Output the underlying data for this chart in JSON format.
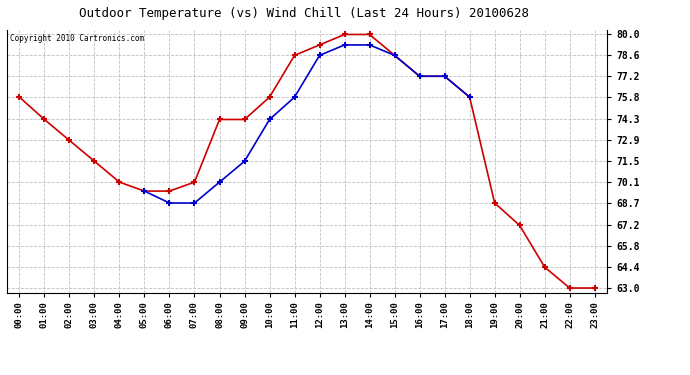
{
  "title": "Outdoor Temperature (vs) Wind Chill (Last 24 Hours) 20100628",
  "copyright": "Copyright 2010 Cartronics.com",
  "hours": [
    0,
    1,
    2,
    3,
    4,
    5,
    6,
    7,
    8,
    9,
    10,
    11,
    12,
    13,
    14,
    15,
    16,
    17,
    18,
    19,
    20,
    21,
    22,
    23
  ],
  "hour_labels": [
    "00:00",
    "01:00",
    "02:00",
    "03:00",
    "04:00",
    "05:00",
    "06:00",
    "07:00",
    "08:00",
    "09:00",
    "10:00",
    "11:00",
    "12:00",
    "13:00",
    "14:00",
    "15:00",
    "16:00",
    "17:00",
    "18:00",
    "19:00",
    "20:00",
    "21:00",
    "22:00",
    "23:00"
  ],
  "temp": [
    75.8,
    74.3,
    72.9,
    71.5,
    70.1,
    69.5,
    69.5,
    70.1,
    74.3,
    74.3,
    75.8,
    78.6,
    79.3,
    80.0,
    80.0,
    78.6,
    77.2,
    77.2,
    75.8,
    68.7,
    67.2,
    64.4,
    63.0,
    63.0
  ],
  "wind_chill": [
    null,
    null,
    null,
    null,
    null,
    69.5,
    68.7,
    68.7,
    70.1,
    71.5,
    74.3,
    75.8,
    78.6,
    79.3,
    79.3,
    78.6,
    77.2,
    77.2,
    75.8,
    null,
    null,
    null,
    null,
    null
  ],
  "temp_color": "#cc0000",
  "wind_chill_color": "#0000cc",
  "bg_color": "#ffffff",
  "plot_bg_color": "#ffffff",
  "grid_color": "#c0c0c0",
  "ylim_min": 63.0,
  "ylim_max": 80.0,
  "yticks": [
    63.0,
    64.4,
    65.8,
    67.2,
    68.7,
    70.1,
    71.5,
    72.9,
    74.3,
    75.8,
    77.2,
    78.6,
    80.0
  ]
}
